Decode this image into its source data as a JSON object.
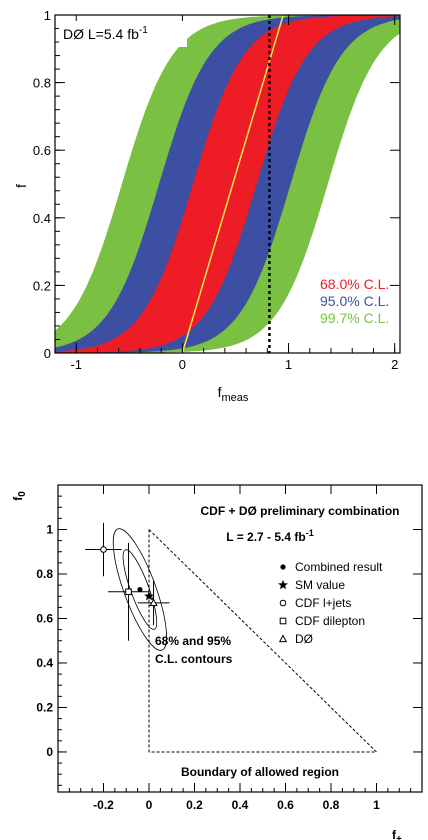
{
  "chart_data": [
    {
      "type": "area",
      "title": "DØ L=5.4 fb",
      "title_sup": "-1",
      "xlabel": "f",
      "xlabel_sub": "meas",
      "ylabel": "f",
      "xlim": [
        -1.2,
        2.05
      ],
      "ylim": [
        0,
        1
      ],
      "xticks": [
        -1,
        0,
        1,
        2
      ],
      "yticks": [
        0,
        0.2,
        0.4,
        0.6,
        0.8,
        1
      ],
      "ytick_labels": [
        "0",
        "0.2",
        "0.4",
        "0.6",
        "0.8",
        "1"
      ],
      "bands": [
        {
          "name": "99.7% C.L.",
          "color": "#7ac143",
          "half_width": 0.97
        },
        {
          "name": "95.0% C.L.",
          "color": "#3c4fa3",
          "half_width": 0.62
        },
        {
          "name": "68.0% C.L.",
          "color": "#ee1c25",
          "half_width": 0.3
        }
      ],
      "central_line": {
        "color": "#f6e84a",
        "x": [
          0,
          0.95
        ],
        "y": [
          0,
          1
        ]
      },
      "measured_line": {
        "x": 0.82,
        "style": "dotted"
      },
      "legend_position": "bottom-right",
      "legend": [
        "68.0% C.L.",
        "95.0% C.L.",
        "99.7% C.L."
      ]
    },
    {
      "type": "scatter",
      "title": "CDF + DØ preliminary combination",
      "subtitle": "L = 2.7 - 5.4 fb",
      "subtitle_sup": "-1",
      "xlabel": "f",
      "xlabel_sub": "+",
      "ylabel": "f",
      "ylabel_sub": "0",
      "xlim": [
        -0.4,
        1.2
      ],
      "ylim": [
        -0.18,
        1.2
      ],
      "xticks": [
        -0.2,
        0,
        0.2,
        0.4,
        0.6,
        0.8,
        1
      ],
      "xtick_labels": [
        "-0.2",
        "0",
        "0.2",
        "0.4",
        "0.6",
        "0.8",
        "1"
      ],
      "yticks": [
        0,
        0.2,
        0.4,
        0.6,
        0.8,
        1
      ],
      "ytick_labels": [
        "0",
        "0.2",
        "0.4",
        "0.6",
        "0.8",
        "1"
      ],
      "points": [
        {
          "name": "Combined result",
          "marker": "dot",
          "x": -0.04,
          "y": 0.73
        },
        {
          "name": "SM value",
          "marker": "star",
          "x": 0.0,
          "y": 0.7
        },
        {
          "name": "CDF l+jets",
          "marker": "circle",
          "x": -0.2,
          "y": 0.91,
          "xerr": 0.08,
          "yerr": 0.12
        },
        {
          "name": "CDF dilepton",
          "marker": "square",
          "x": -0.09,
          "y": 0.72,
          "xerr": 0.09,
          "yerr": 0.22
        },
        {
          "name": "DØ",
          "marker": "triangle",
          "x": 0.02,
          "y": 0.67,
          "xerr": 0.07,
          "yerr": 0.1
        }
      ],
      "ellipses": [
        {
          "cx": -0.04,
          "cy": 0.73,
          "rx": 0.04,
          "ry": 0.19,
          "angle_deg": -20
        },
        {
          "cx": -0.04,
          "cy": 0.73,
          "rx": 0.07,
          "ry": 0.29,
          "angle_deg": -20
        }
      ],
      "triangle": [
        [
          0,
          1
        ],
        [
          0,
          0
        ],
        [
          1,
          0
        ]
      ],
      "contour_note": [
        "68% and 95%",
        "C.L. contours"
      ],
      "boundary_note": "Boundary of allowed region",
      "legend": [
        "Combined result",
        "SM value",
        "CDF l+jets",
        "CDF dilepton",
        "DØ"
      ],
      "legend_position": "right"
    }
  ]
}
